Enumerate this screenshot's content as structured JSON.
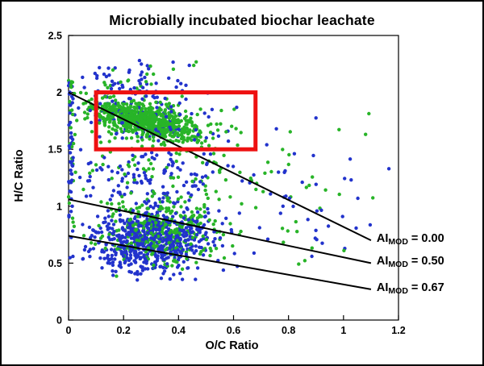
{
  "chart_data": {
    "type": "scatter",
    "title": "Microbially incubated biochar leachate",
    "xlabel": "O/C Ratio",
    "ylabel": "H/C Ratio",
    "xlim": [
      0,
      1.2
    ],
    "ylim": [
      0,
      2.5
    ],
    "x_ticks": [
      0,
      0.2,
      0.4,
      0.6,
      0.8,
      1,
      1.2
    ],
    "x_tick_labels": [
      "0",
      "0.2",
      "0.4",
      "0.6",
      "0.8",
      "1",
      "1.2"
    ],
    "y_ticks": [
      0,
      0.5,
      1,
      1.5,
      2,
      2.5
    ],
    "y_tick_labels": [
      "0",
      "0.5",
      "1",
      "1.5",
      "2",
      "2.5"
    ],
    "grid": false,
    "legend": "none",
    "series_colors": {
      "green": "#28b428",
      "blue": "#2233cc"
    },
    "dot_radius": 2.2,
    "highlight_box": {
      "x0": 0.1,
      "x1": 0.68,
      "y0": 1.5,
      "y1": 2.0,
      "color": "#ee1111",
      "stroke_width": 5
    },
    "lines": [
      {
        "label_prefix": "AI",
        "label_sub": "MOD",
        "label_value": " = 0.00",
        "x0": 0,
        "y0": 2.0,
        "x1": 1.1,
        "y1": 0.7
      },
      {
        "label_prefix": "AI",
        "label_sub": "MOD",
        "label_value": " = 0.50",
        "x0": 0,
        "y0": 1.06,
        "x1": 1.1,
        "y1": 0.5
      },
      {
        "label_prefix": "AI",
        "label_sub": "MOD",
        "label_value": " = 0.67",
        "x0": 0,
        "y0": 0.74,
        "x1": 1.1,
        "y1": 0.27
      }
    ],
    "clusters": [
      {
        "color": "blue",
        "count": 110,
        "cx": 0.3,
        "cy": 1.25,
        "sx": 0.16,
        "sy": 0.16,
        "corr": 0,
        "xmin": 0.0,
        "xmax": 0.8,
        "ymin": 1.0,
        "ymax": 1.5
      },
      {
        "color": "green",
        "count": 60,
        "cx": 0.35,
        "cy": 1.3,
        "sx": 0.17,
        "sy": 0.15,
        "corr": 0,
        "xmin": 0.0,
        "xmax": 0.8,
        "ymin": 1.0,
        "ymax": 1.5
      },
      {
        "color": "blue",
        "count": 45,
        "cx": 0.008,
        "cy": 1.35,
        "sx": 0.006,
        "sy": 0.5,
        "corr": 0,
        "xmin": 0.0,
        "xmax": 0.03,
        "ymin": 0.45,
        "ymax": 2.3
      },
      {
        "color": "green",
        "count": 25,
        "cx": 0.01,
        "cy": 1.5,
        "sx": 0.007,
        "sy": 0.45,
        "corr": 0,
        "xmin": 0.0,
        "xmax": 0.03,
        "ymin": 0.5,
        "ymax": 2.25
      },
      {
        "color": "blue",
        "count": 45,
        "cx": 0.25,
        "cy": 2.12,
        "sx": 0.17,
        "sy": 0.09,
        "corr": 0,
        "xmin": 0.0,
        "xmax": 0.75,
        "ymin": 1.98,
        "ymax": 2.3
      },
      {
        "color": "green",
        "count": 18,
        "cx": 0.28,
        "cy": 2.1,
        "sx": 0.15,
        "sy": 0.08,
        "corr": 0,
        "xmin": 0.0,
        "xmax": 0.6,
        "ymin": 2.0,
        "ymax": 2.28
      },
      {
        "color": "blue",
        "count": 40,
        "cx": 0.82,
        "cy": 1.05,
        "sx": 0.16,
        "sy": 0.4,
        "corr": 0,
        "xmin": 0.62,
        "xmax": 1.18,
        "ymin": 0.4,
        "ymax": 2.0
      },
      {
        "color": "green",
        "count": 28,
        "cx": 0.85,
        "cy": 1.15,
        "sx": 0.16,
        "sy": 0.38,
        "corr": 0,
        "xmin": 0.62,
        "xmax": 1.16,
        "ymin": 0.45,
        "ymax": 1.95
      },
      {
        "color": "blue",
        "count": 120,
        "cx": 0.26,
        "cy": 1.8,
        "sx": 0.15,
        "sy": 0.17,
        "corr": -0.2,
        "xmin": 0.0,
        "xmax": 0.75,
        "ymin": 1.35,
        "ymax": 2.25
      },
      {
        "color": "green",
        "count": 130,
        "cx": 0.32,
        "cy": 1.72,
        "sx": 0.17,
        "sy": 0.15,
        "corr": -0.3,
        "xmin": 0.0,
        "xmax": 0.8,
        "ymin": 1.3,
        "ymax": 2.1
      },
      {
        "color": "green",
        "count": 650,
        "cx": 0.28,
        "cy": 1.76,
        "sx": 0.095,
        "sy": 0.085,
        "corr": -0.6,
        "xmin": 0.04,
        "xmax": 0.75,
        "ymin": 1.48,
        "ymax": 2.02
      },
      {
        "color": "green",
        "count": 330,
        "cx": 0.34,
        "cy": 0.78,
        "sx": 0.115,
        "sy": 0.15,
        "corr": 0,
        "xmin": 0.04,
        "xmax": 0.7,
        "ymin": 0.38,
        "ymax": 1.2
      },
      {
        "color": "blue",
        "count": 650,
        "cx": 0.3,
        "cy": 0.7,
        "sx": 0.105,
        "sy": 0.14,
        "corr": 0.1,
        "xmin": 0.03,
        "xmax": 0.68,
        "ymin": 0.35,
        "ymax": 1.15
      }
    ]
  }
}
